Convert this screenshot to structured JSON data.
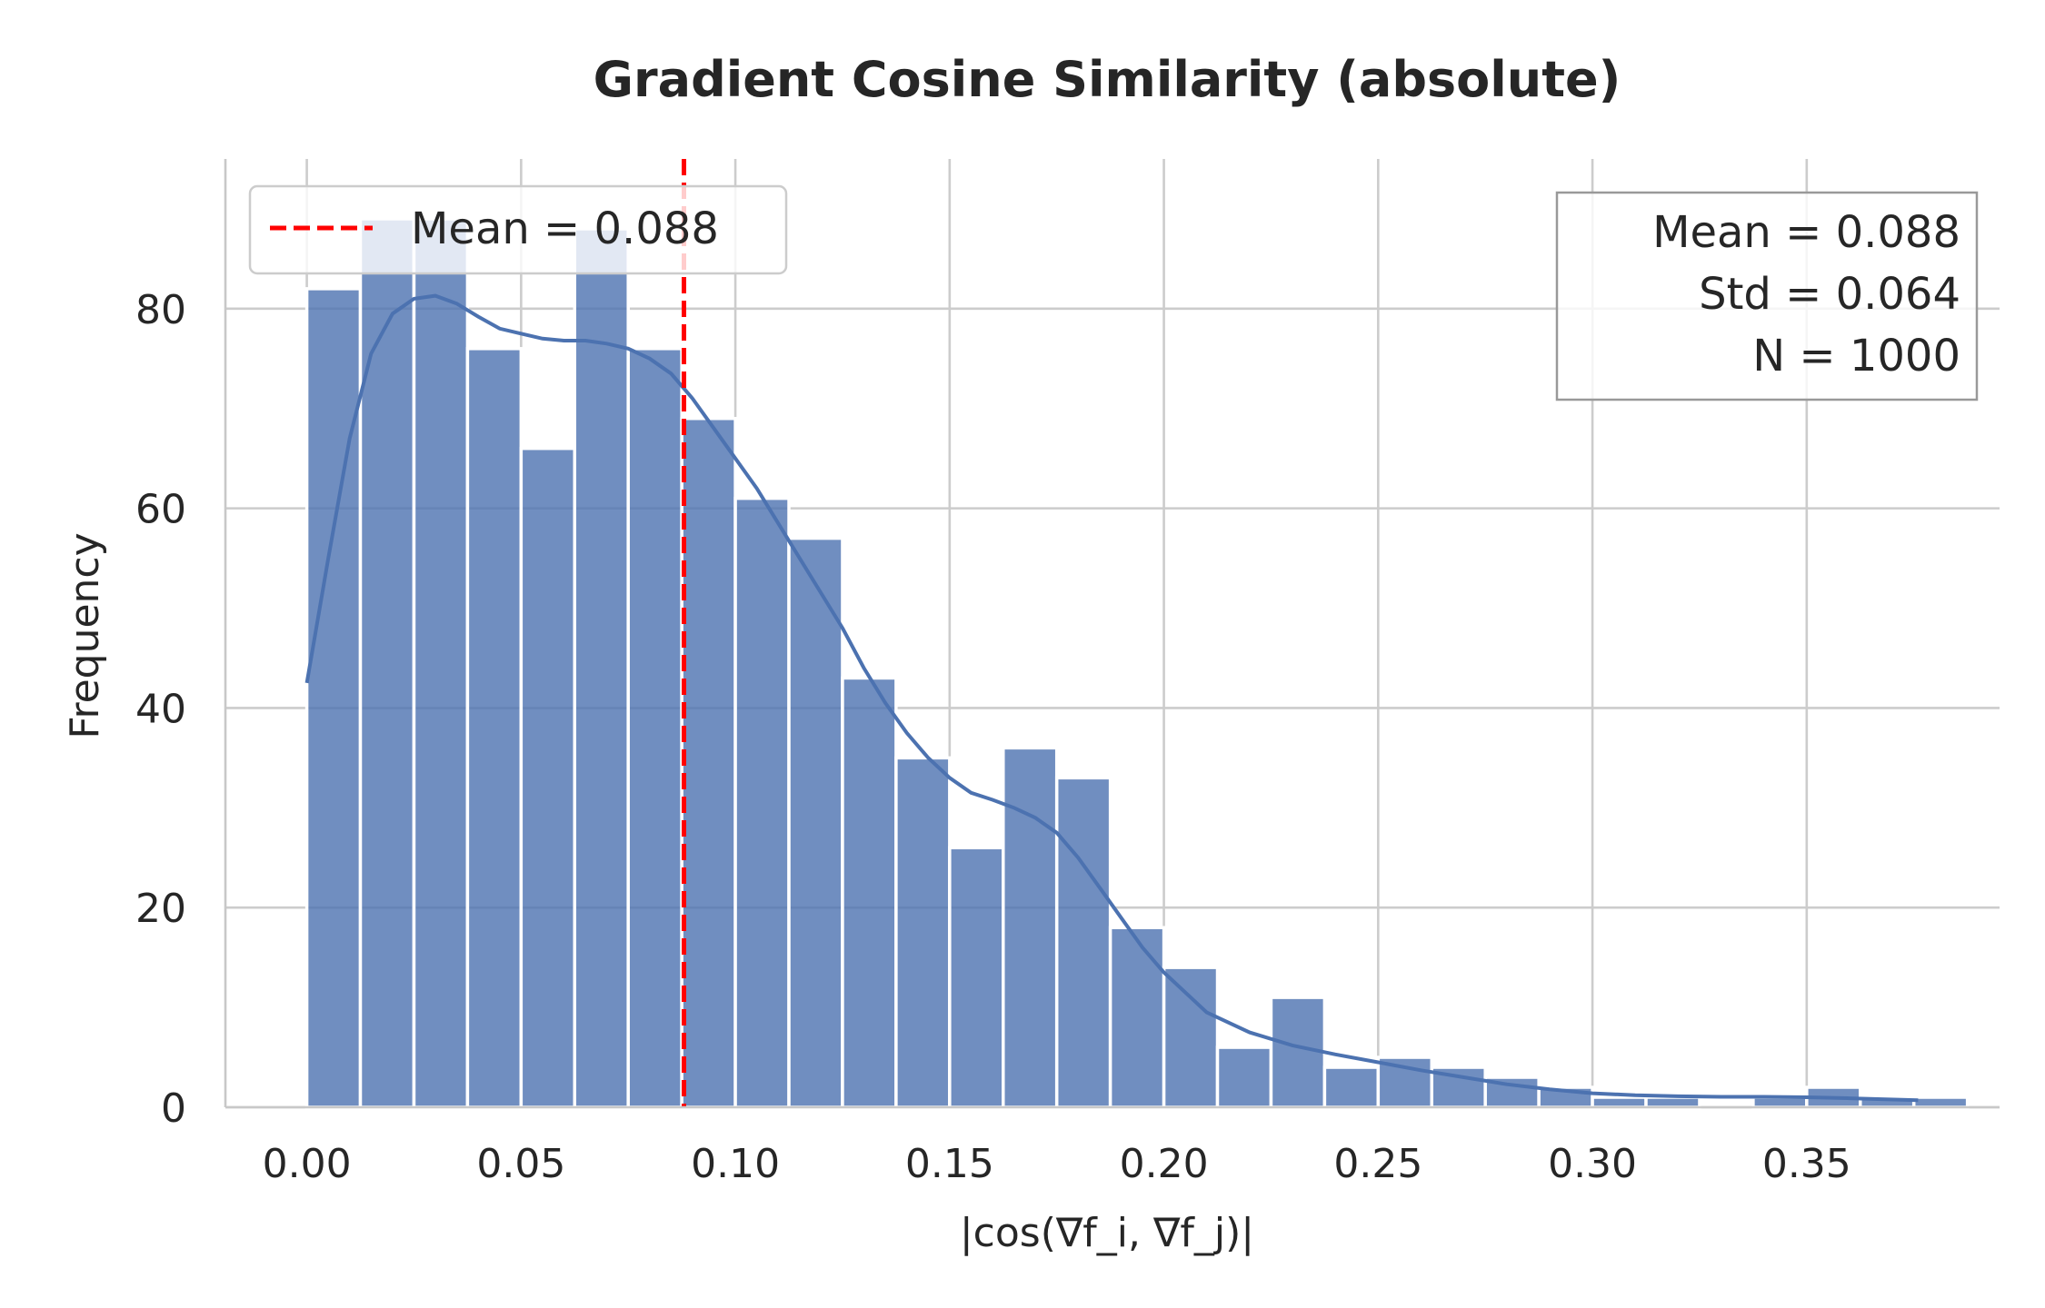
{
  "chart_data": {
    "type": "bar",
    "title": "Gradient Cosine Similarity (absolute)",
    "xlabel": "|cos(∇f_i, ∇f_j)|",
    "ylabel": "Frequency",
    "xlim": [
      -0.019,
      0.395
    ],
    "ylim": [
      0,
      95
    ],
    "xticks": [
      0.0,
      0.05,
      0.1,
      0.15,
      0.2,
      0.25,
      0.3,
      0.35
    ],
    "xtick_labels": [
      "0.00",
      "0.05",
      "0.10",
      "0.15",
      "0.20",
      "0.25",
      "0.30",
      "0.35"
    ],
    "yticks": [
      0,
      20,
      40,
      60,
      80
    ],
    "ytick_labels": [
      "0",
      "20",
      "40",
      "60",
      "80"
    ],
    "grid": true,
    "bin_start": 0.0,
    "bin_width": 0.0125,
    "counts": [
      82,
      89,
      89,
      76,
      66,
      88,
      76,
      69,
      61,
      57,
      43,
      35,
      26,
      36,
      33,
      18,
      14,
      6,
      11,
      4,
      5,
      4,
      3,
      2,
      1,
      1,
      0,
      1,
      2,
      1,
      1
    ],
    "kde": {
      "x": [
        0.0,
        0.005,
        0.01,
        0.015,
        0.02,
        0.025,
        0.03,
        0.035,
        0.04,
        0.045,
        0.05,
        0.055,
        0.06,
        0.065,
        0.07,
        0.075,
        0.08,
        0.085,
        0.09,
        0.095,
        0.1,
        0.105,
        0.11,
        0.115,
        0.12,
        0.125,
        0.13,
        0.135,
        0.14,
        0.145,
        0.15,
        0.155,
        0.16,
        0.165,
        0.17,
        0.175,
        0.18,
        0.185,
        0.19,
        0.195,
        0.2,
        0.21,
        0.22,
        0.23,
        0.24,
        0.25,
        0.26,
        0.27,
        0.28,
        0.29,
        0.3,
        0.31,
        0.32,
        0.33,
        0.34,
        0.35,
        0.36,
        0.376
      ],
      "y": [
        42.5,
        55,
        67,
        75.5,
        79.5,
        81,
        81.3,
        80.5,
        79.2,
        78,
        77.5,
        77,
        76.8,
        76.8,
        76.5,
        76,
        75,
        73.5,
        71,
        68,
        65,
        62,
        58.5,
        55,
        51.5,
        48,
        44,
        40.5,
        37.5,
        35,
        33,
        31.5,
        30.8,
        30,
        29,
        27.5,
        25,
        22,
        19,
        16,
        13.5,
        9.5,
        7.5,
        6.2,
        5.3,
        4.5,
        3.7,
        3.0,
        2.3,
        1.8,
        1.4,
        1.2,
        1.1,
        1.05,
        1.05,
        1.0,
        0.9,
        0.7
      ]
    },
    "mean_line": {
      "x": 0.088,
      "color": "#ff0000",
      "label": "Mean = 0.088"
    },
    "legend_position": "upper-left",
    "stats_box": {
      "position": "upper-right",
      "lines": [
        "Mean = 0.088",
        "Std = 0.064",
        "N = 1000"
      ]
    },
    "bar_color": "#4c72b0"
  }
}
